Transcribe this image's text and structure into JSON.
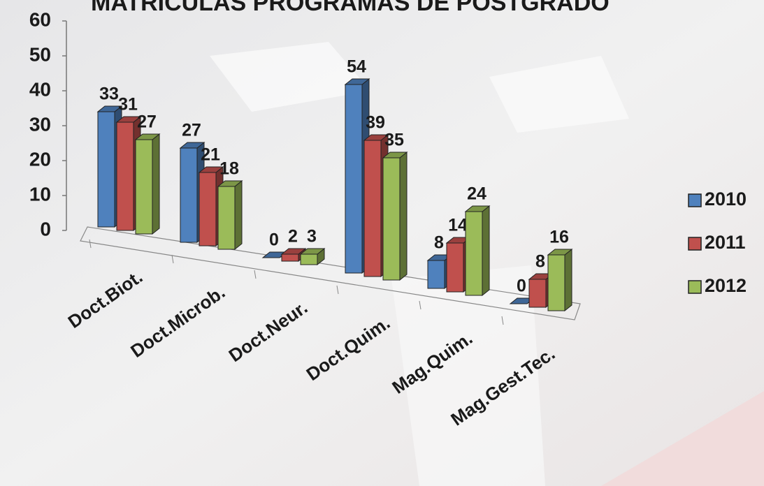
{
  "chart_data": {
    "type": "bar3d",
    "title": "MATRICULAS PROGRAMAS DE POSTGRADO",
    "categories": [
      "Doct.Biot.",
      "Doct.Microb.",
      "Doct.Neur.",
      "Doct.Quim.",
      "Mag.Quim.",
      "Mag.Gest.Tec."
    ],
    "series": [
      {
        "name": "2010",
        "color": "#4f81bd",
        "values": [
          33,
          27,
          0,
          54,
          8,
          0
        ]
      },
      {
        "name": "2011",
        "color": "#c0504d",
        "values": [
          31,
          21,
          2,
          39,
          14,
          8
        ]
      },
      {
        "name": "2012",
        "color": "#9bbb59",
        "values": [
          27,
          18,
          3,
          35,
          24,
          16
        ]
      }
    ],
    "ylim": [
      0,
      60
    ],
    "yticks": [
      0,
      10,
      20,
      30,
      40,
      50,
      60
    ],
    "legend": "right"
  }
}
